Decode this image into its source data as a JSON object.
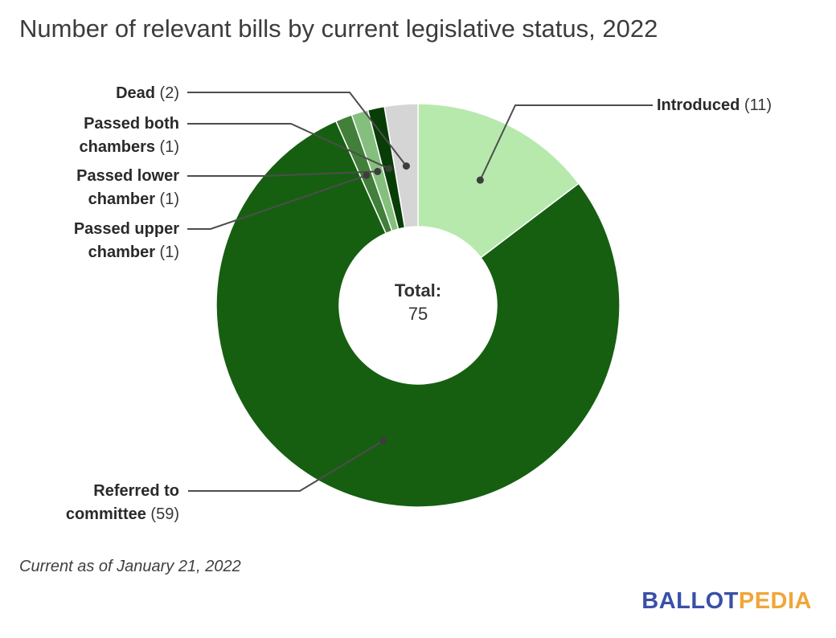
{
  "title": "Number of relevant bills by current legislative status, 2022",
  "footnote": "Current as of January 21, 2022",
  "center_label": {
    "title": "Total:",
    "value": "75"
  },
  "logo": {
    "ballot": "BALLOT",
    "pedia": "PEDIA",
    "ballot_color": "#3950a8",
    "pedia_color": "#f0a638"
  },
  "chart_data": {
    "type": "pie",
    "subtype": "donut",
    "title": "Number of relevant bills by current legislative status, 2022",
    "total": 75,
    "direction": "clockwise",
    "start_angle_deg": 0,
    "legend_position": "callout-labels",
    "slices": [
      {
        "label": "Introduced",
        "value": 11,
        "count_display": "(11)",
        "color": "#b7e9ad"
      },
      {
        "label": "Referred to committee",
        "value": 59,
        "count_display": "(59)",
        "color": "#165f11"
      },
      {
        "label": "Passed upper chamber",
        "value": 1,
        "count_display": "(1)",
        "color": "#417f3a"
      },
      {
        "label": "Passed lower chamber",
        "value": 1,
        "count_display": "(1)",
        "color": "#85bf7e"
      },
      {
        "label": "Passed both chambers",
        "value": 1,
        "count_display": "(1)",
        "color": "#083d07"
      },
      {
        "label": "Dead",
        "value": 2,
        "count_display": "(2)",
        "color": "#d5d5d5"
      }
    ],
    "slice_border_color": "#ffffff",
    "leader_line_color": "#4d4d4d",
    "leader_dot_color": "#3d3d3d"
  }
}
